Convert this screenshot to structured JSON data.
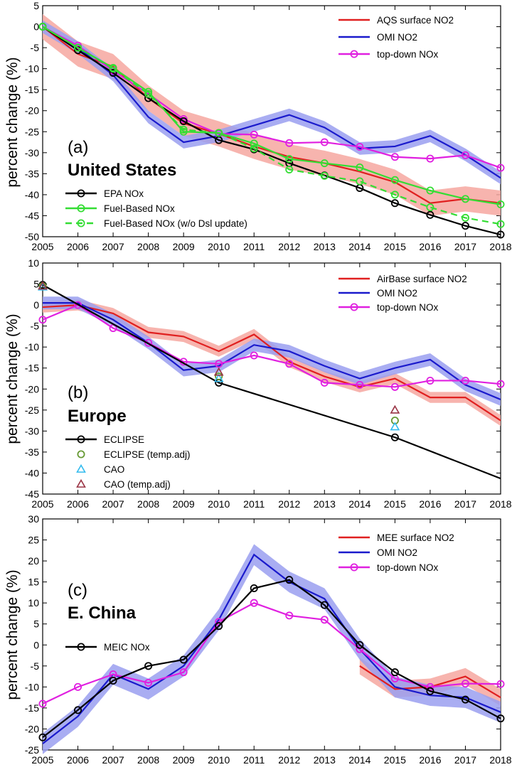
{
  "chart_data": [
    {
      "type": "line",
      "panel_label": "(a)",
      "region": "United States",
      "ylabel": "percent change (%)",
      "ylim": [
        -50,
        5
      ],
      "yticks": [
        5,
        0,
        -5,
        -10,
        -15,
        -20,
        -25,
        -30,
        -35,
        -40,
        -45,
        -50
      ],
      "x": [
        2005,
        2006,
        2007,
        2008,
        2009,
        2010,
        2011,
        2012,
        2013,
        2014,
        2015,
        2016,
        2017,
        2018
      ],
      "grid": false,
      "legend_placement": [
        "top-right",
        "bottom-left"
      ],
      "series": [
        {
          "name": "AQS surface NO2",
          "color": "#e02020",
          "band_color": "#f6a7a0",
          "band_width": 3,
          "values": [
            0,
            -6.5,
            -9.5,
            -17,
            -23,
            -25.5,
            -28.5,
            -31,
            -32.5,
            -34.5,
            -37,
            -42,
            -41,
            -42
          ],
          "legend": "upper"
        },
        {
          "name": "OMI NO2",
          "color": "#1a1acc",
          "band_color": "#9a9ff0",
          "band_width": 1.5,
          "values": [
            0,
            -5,
            -11.5,
            -21.5,
            -27.5,
            -26,
            -23.5,
            -21,
            -24,
            -29,
            -28.5,
            -26,
            -30.5,
            -36
          ],
          "legend": "upper"
        },
        {
          "name": "top-down NOx",
          "color": "#e020e0",
          "marker": "circle",
          "values": [
            0,
            -4.5,
            -10.5,
            -16,
            -22,
            -25.5,
            -25.7,
            -27.7,
            -27.5,
            -28.6,
            -31,
            -31.4,
            -30.6,
            -33.6
          ],
          "legend": "upper"
        },
        {
          "name": "EPA NOx",
          "color": "#000000",
          "marker": "circle",
          "values": [
            0,
            -5.6,
            -11,
            -17,
            -22.5,
            -27,
            -29.2,
            -32.5,
            -35.4,
            -38.4,
            -42,
            -44.8,
            -47.4,
            -49.5
          ],
          "legend": "lower"
        },
        {
          "name": "Fuel-Based NOx",
          "color": "#33dd33",
          "marker": "circle",
          "values": [
            0,
            -5,
            -9.8,
            -15.5,
            -25,
            -25.3,
            -27.8,
            -31.5,
            -32.5,
            -33.5,
            -36.5,
            -39,
            -41,
            -42.3
          ],
          "legend": "lower"
        },
        {
          "name": "Fuel-Based NOx (w/o Dsl update)",
          "color": "#33dd33",
          "marker": "circle",
          "dashed": true,
          "values": [
            0,
            -5,
            -10,
            -16,
            -24.5,
            -25.3,
            -29,
            -34,
            -35.5,
            -36.8,
            -40,
            -43,
            -45.5,
            -47
          ],
          "legend": "lower"
        }
      ]
    },
    {
      "type": "line",
      "panel_label": "(b)",
      "region": "Europe",
      "ylabel": "percent change (%)",
      "ylim": [
        -45,
        10
      ],
      "yticks": [
        10,
        5,
        0,
        -5,
        -10,
        -15,
        -20,
        -25,
        -30,
        -35,
        -40,
        -45
      ],
      "x": [
        2005,
        2006,
        2007,
        2008,
        2009,
        2010,
        2011,
        2012,
        2013,
        2014,
        2015,
        2016,
        2017,
        2018
      ],
      "grid": false,
      "legend_placement": [
        "top-right",
        "bottom-left"
      ],
      "series": [
        {
          "name": "AirBase surface NO2",
          "color": "#e02020",
          "band_color": "#f6a7a0",
          "band_width": 1.3,
          "values": [
            -0.5,
            0,
            -2,
            -6.5,
            -7.5,
            -11,
            -7,
            -13.5,
            -17,
            -19.5,
            -17.5,
            -22,
            -22,
            -27.5
          ],
          "legend": "upper"
        },
        {
          "name": "OMI NO2",
          "color": "#1a1acc",
          "band_color": "#9a9ff0",
          "band_width": 1.5,
          "values": [
            0.5,
            0.5,
            -3.5,
            -9,
            -15.5,
            -14.5,
            -9.5,
            -11,
            -14.5,
            -17.5,
            -15,
            -13,
            -19,
            -22.5
          ],
          "legend": "upper"
        },
        {
          "name": "top-down NOx",
          "color": "#e020e0",
          "marker": "circle",
          "values": [
            -3.5,
            0,
            -5.5,
            -9,
            -13.5,
            -14,
            -12,
            -14,
            -18.5,
            -19,
            -19.5,
            -18,
            -18,
            -18.8
          ],
          "legend": "upper"
        },
        {
          "name": "ECLIPSE",
          "color": "#000000",
          "marker": "circle",
          "marker_years": [
            2005,
            2010,
            2015
          ],
          "x": [
            2005,
            2010,
            2015,
            2018
          ],
          "values": [
            4.8,
            -18.5,
            -31.5,
            -41.3
          ],
          "legend": "lower"
        }
      ],
      "point_series": [
        {
          "name": "ECLIPSE (temp.adj)",
          "color": "#669933",
          "marker": "circle",
          "x": [
            2005,
            2010,
            2015
          ],
          "values": [
            4.5,
            -17,
            -27.5
          ]
        },
        {
          "name": "CAO",
          "color": "#33bbee",
          "marker": "triangle",
          "x": [
            2005,
            2010,
            2015
          ],
          "values": [
            4.3,
            -17.5,
            -29
          ]
        },
        {
          "name": "CAO (temp.adj)",
          "color": "#993344",
          "marker": "triangle",
          "x": [
            2005,
            2010,
            2015
          ],
          "values": [
            4.5,
            -16,
            -25
          ]
        }
      ]
    },
    {
      "type": "line",
      "panel_label": "(c)",
      "region": "E. China",
      "ylabel": "percent change (%)",
      "ylim": [
        -25,
        30
      ],
      "yticks": [
        30,
        25,
        20,
        15,
        10,
        5,
        0,
        -5,
        -10,
        -15,
        -20,
        -25
      ],
      "x": [
        2005,
        2006,
        2007,
        2008,
        2009,
        2010,
        2011,
        2012,
        2013,
        2014,
        2015,
        2016,
        2017,
        2018
      ],
      "grid": false,
      "legend_placement": [
        "top-right",
        "left"
      ],
      "series": [
        {
          "name": "MEE surface NO2",
          "color": "#e02020",
          "band_color": "#f6a7a0",
          "band_width": 2,
          "x": [
            2014,
            2015,
            2016,
            2017,
            2018
          ],
          "values": [
            -5,
            -10.5,
            -10,
            -7.5,
            -12.5
          ],
          "legend": "upper"
        },
        {
          "name": "OMI NO2",
          "color": "#1a1acc",
          "band_color": "#9a9ff0",
          "band_width": 2.5,
          "values": [
            -23.5,
            -17,
            -7,
            -10.5,
            -5,
            6,
            21.5,
            15,
            11,
            -1,
            -10,
            -12,
            -12.5,
            -16
          ],
          "legend": "upper"
        },
        {
          "name": "top-down NOx",
          "color": "#e020e0",
          "marker": "circle",
          "values": [
            -14,
            -10,
            -7,
            -9,
            -6.5,
            5.5,
            10,
            7,
            6,
            -1,
            -8,
            -10,
            -9.2,
            -9.3
          ],
          "legend": "upper"
        },
        {
          "name": "MEIC NOx",
          "color": "#000000",
          "marker": "circle",
          "values": [
            -22,
            -15.5,
            -8.5,
            -5,
            -3.5,
            4.5,
            13.5,
            15.5,
            9.5,
            0,
            -6.5,
            -11,
            -13,
            -17.5
          ],
          "legend": "lower"
        }
      ]
    }
  ]
}
